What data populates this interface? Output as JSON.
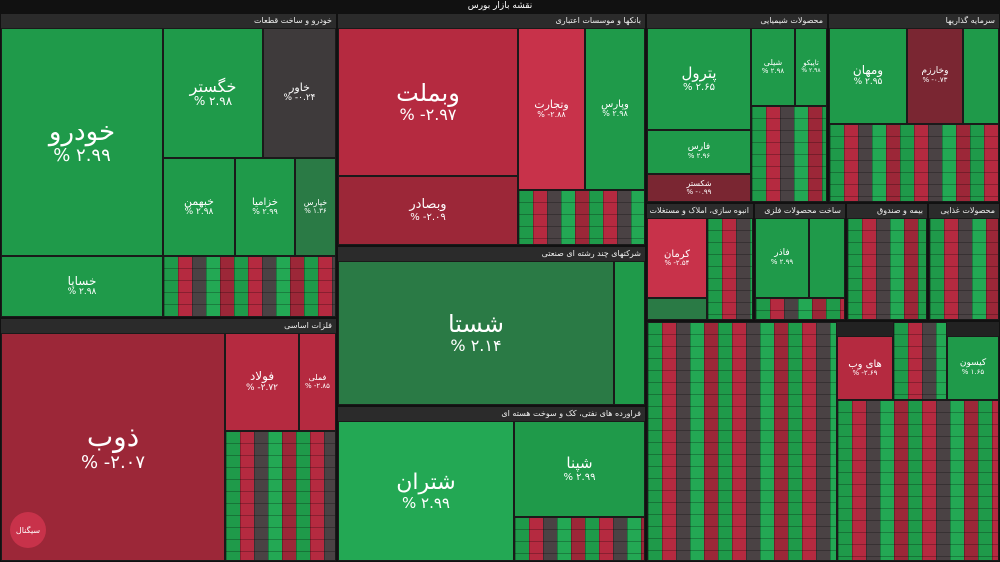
{
  "window_title": "نقشه بازار بورس",
  "brand_mark": "سیگنال",
  "sectors": {
    "auto": "خودرو و ساخت قطعات",
    "banks": "بانکها و موسسات اعتباری",
    "chem": "محصولات شیمیایی",
    "invest": "سرمایه گذاریها",
    "multi": "شرکتهای چند رشته ای صنعتی",
    "metal": "فلزات اساسی",
    "oil": "فراورده های نفتی، کک و سوخت هسته ای",
    "mass": "انبوه سازی، املاک و مستغلات",
    "nonmetal": "ساخت محصولات فلزی",
    "wood": "بیمه و صندوق",
    "food": "محصولات غذایی"
  },
  "tiles": {
    "khodro": {
      "name": "خودرو",
      "change": "% ۲.۹۹"
    },
    "khegostar": {
      "name": "خگستر",
      "change": "% ۲.۹۸"
    },
    "khavar": {
      "name": "خاور",
      "change": "% -۰.۲۴"
    },
    "khbahman": {
      "name": "خبهمن",
      "change": "% ۲.۹۸"
    },
    "khzamia": {
      "name": "خزامیا",
      "change": "% ۲.۹۹"
    },
    "khpars": {
      "name": "خپارس",
      "change": "% ۱.۳۶"
    },
    "khsapa": {
      "name": "خساپا",
      "change": "% ۲.۹۸"
    },
    "vabemellat": {
      "name": "وبملت",
      "change": "% -۲.۹۷"
    },
    "vtejarat": {
      "name": "وتجارت",
      "change": "% -۲.۸۸"
    },
    "vpars": {
      "name": "وپارس",
      "change": "% ۲.۹۸"
    },
    "vbsader": {
      "name": "وبصادر",
      "change": "% -۲.۰۹"
    },
    "shasta": {
      "name": "شستا",
      "change": "% ۲.۱۴"
    },
    "petrol": {
      "name": "پترول",
      "change": "% ۲.۶۵"
    },
    "vmahan": {
      "name": "ومهان",
      "change": "% ۲.۹۵"
    },
    "zob": {
      "name": "ذوب",
      "change": "% -۲.۰۷"
    },
    "foolad": {
      "name": "فولاد",
      "change": "% -۲.۷۲"
    },
    "fameli": {
      "name": "فملی",
      "change": "% -۲.۸۵"
    },
    "shetran": {
      "name": "شتران",
      "change": "% ۲.۹۹"
    },
    "shpna": {
      "name": "شپنا",
      "change": "% ۲.۹۹"
    },
    "kerman": {
      "name": "کرمان",
      "change": "% -۲.۵۴"
    },
    "fader": {
      "name": "فاذر",
      "change": "% ۲.۹۹"
    },
    "vkharazm": {
      "name": "وخارزم",
      "change": "% -۰.۷۳"
    },
    "shegoya": {
      "name": "شکستر",
      "change": "% -۰.۹۹"
    },
    "fars": {
      "name": "فارس",
      "change": "% ۲.۹۶"
    },
    "haywab": {
      "name": "های وب",
      "change": "% -۲.۶۹"
    },
    "kisun": {
      "name": "کیسون",
      "change": "% ۱.۶۵"
    },
    "tapico": {
      "name": "تاپیکو",
      "change": "% ۲.۹۸"
    },
    "shili": {
      "name": "شیلی",
      "change": "% ۲.۹۸"
    }
  }
}
